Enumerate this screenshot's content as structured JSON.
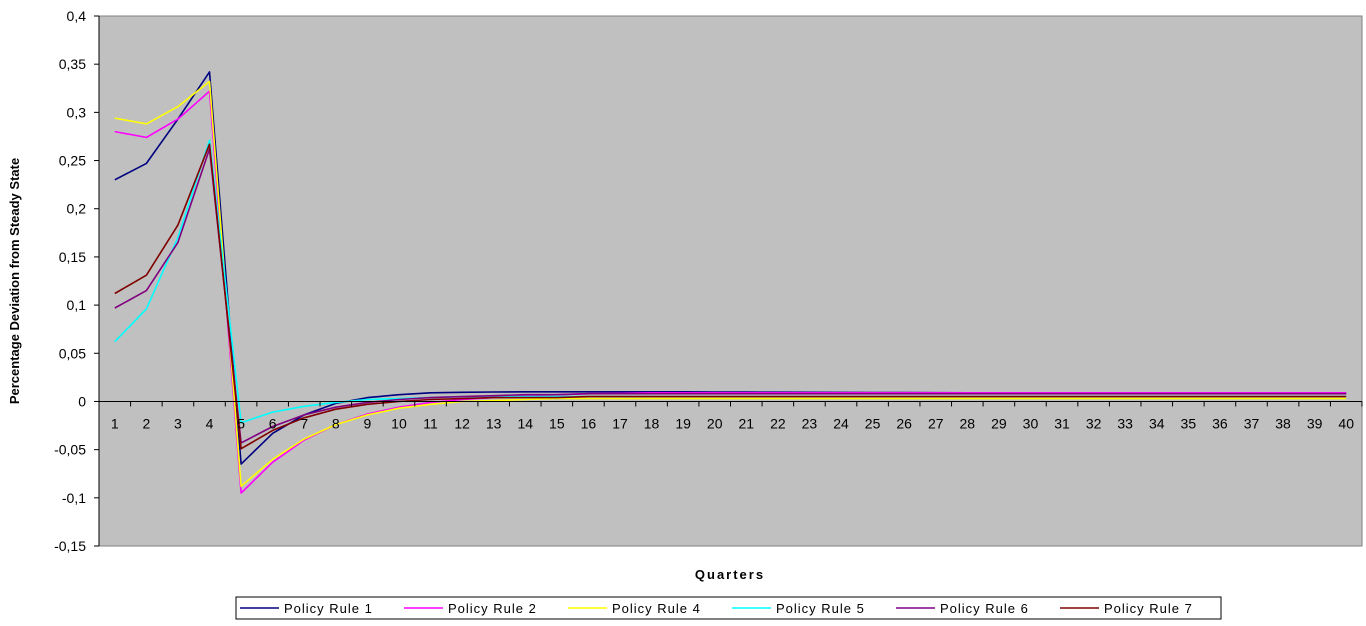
{
  "chart_data": {
    "type": "line",
    "title": "",
    "xlabel": "Quarters",
    "ylabel": "Percentage Deviation from Steady State",
    "ylim": [
      -0.15,
      0.4
    ],
    "y_ticks": [
      "0,4",
      "0,35",
      "0,3",
      "0,25",
      "0,2",
      "0,15",
      "0,1",
      "0,05",
      "0",
      "-0,05",
      "-0,1",
      "-0,15"
    ],
    "y_tick_values": [
      0.4,
      0.35,
      0.3,
      0.25,
      0.2,
      0.15,
      0.1,
      0.05,
      0,
      -0.05,
      -0.1,
      -0.15
    ],
    "x": [
      "1",
      "2",
      "3",
      "4",
      "5",
      "6",
      "7",
      "8",
      "9",
      "10",
      "11",
      "12",
      "13",
      "14",
      "15",
      "16",
      "17",
      "18",
      "19",
      "20",
      "21",
      "22",
      "23",
      "24",
      "25",
      "26",
      "27",
      "28",
      "29",
      "30",
      "31",
      "32",
      "33",
      "34",
      "35",
      "36",
      "37",
      "38",
      "39",
      "40"
    ],
    "grid": false,
    "background": "#c0c0c0",
    "legend_position": "bottom",
    "series": [
      {
        "name": "Policy Rule 1",
        "color": "#000080",
        "values": [
          0.23,
          0.247,
          0.293,
          0.342,
          -0.065,
          -0.033,
          -0.014,
          -0.002,
          0.004,
          0.007,
          0.009,
          0.0095,
          0.0098,
          0.01,
          0.01,
          0.01,
          0.01,
          0.01,
          0.01,
          0.0098,
          0.0097,
          0.0096,
          0.0095,
          0.0094,
          0.0093,
          0.0092,
          0.0091,
          0.009,
          0.009,
          0.0089,
          0.0088,
          0.0088,
          0.0087,
          0.0087,
          0.0086,
          0.0086,
          0.0085,
          0.0085,
          0.0085,
          0.0085
        ]
      },
      {
        "name": "Policy Rule 2",
        "color": "#ff00ff",
        "values": [
          0.28,
          0.274,
          0.293,
          0.322,
          -0.095,
          -0.063,
          -0.04,
          -0.024,
          -0.013,
          -0.006,
          -0.001,
          0.002,
          0.004,
          0.006,
          0.007,
          0.008,
          0.0085,
          0.009,
          0.009,
          0.009,
          0.009,
          0.009,
          0.009,
          0.009,
          0.009,
          0.009,
          0.009,
          0.009,
          0.009,
          0.009,
          0.009,
          0.009,
          0.009,
          0.009,
          0.009,
          0.009,
          0.009,
          0.009,
          0.009,
          0.009
        ]
      },
      {
        "name": "Policy Rule 4",
        "color": "#ffff00",
        "values": [
          0.294,
          0.288,
          0.306,
          0.332,
          -0.088,
          -0.06,
          -0.039,
          -0.024,
          -0.014,
          -0.007,
          -0.003,
          0.0,
          0.001,
          0.002,
          0.003,
          0.003,
          0.003,
          0.003,
          0.003,
          0.003,
          0.003,
          0.003,
          0.003,
          0.003,
          0.003,
          0.003,
          0.003,
          0.003,
          0.003,
          0.003,
          0.003,
          0.003,
          0.003,
          0.003,
          0.003,
          0.003,
          0.003,
          0.003,
          0.003,
          0.003
        ]
      },
      {
        "name": "Policy Rule 5",
        "color": "#00ffff",
        "values": [
          0.062,
          0.096,
          0.17,
          0.271,
          -0.022,
          -0.011,
          -0.005,
          -0.001,
          0.002,
          0.003,
          0.004,
          0.005,
          0.005,
          0.005,
          0.005,
          0.005,
          0.005,
          0.005,
          0.005,
          0.005,
          0.005,
          0.005,
          0.005,
          0.005,
          0.005,
          0.005,
          0.005,
          0.005,
          0.005,
          0.005,
          0.005,
          0.005,
          0.005,
          0.005,
          0.005,
          0.005,
          0.005,
          0.005,
          0.005,
          0.005
        ]
      },
      {
        "name": "Policy Rule 6",
        "color": "#800080",
        "values": [
          0.097,
          0.115,
          0.165,
          0.262,
          -0.043,
          -0.026,
          -0.014,
          -0.006,
          -0.001,
          0.002,
          0.004,
          0.005,
          0.006,
          0.007,
          0.007,
          0.008,
          0.008,
          0.008,
          0.008,
          0.008,
          0.008,
          0.008,
          0.008,
          0.008,
          0.008,
          0.008,
          0.008,
          0.008,
          0.008,
          0.008,
          0.008,
          0.008,
          0.008,
          0.008,
          0.008,
          0.008,
          0.008,
          0.008,
          0.008,
          0.008
        ]
      },
      {
        "name": "Policy Rule 7",
        "color": "#800000",
        "values": [
          0.112,
          0.131,
          0.183,
          0.267,
          -0.049,
          -0.03,
          -0.017,
          -0.008,
          -0.003,
          0.0,
          0.002,
          0.003,
          0.004,
          0.004,
          0.004,
          0.005,
          0.005,
          0.005,
          0.005,
          0.005,
          0.005,
          0.005,
          0.005,
          0.005,
          0.005,
          0.005,
          0.005,
          0.005,
          0.005,
          0.005,
          0.005,
          0.005,
          0.005,
          0.005,
          0.005,
          0.005,
          0.005,
          0.005,
          0.005,
          0.005
        ]
      }
    ]
  }
}
